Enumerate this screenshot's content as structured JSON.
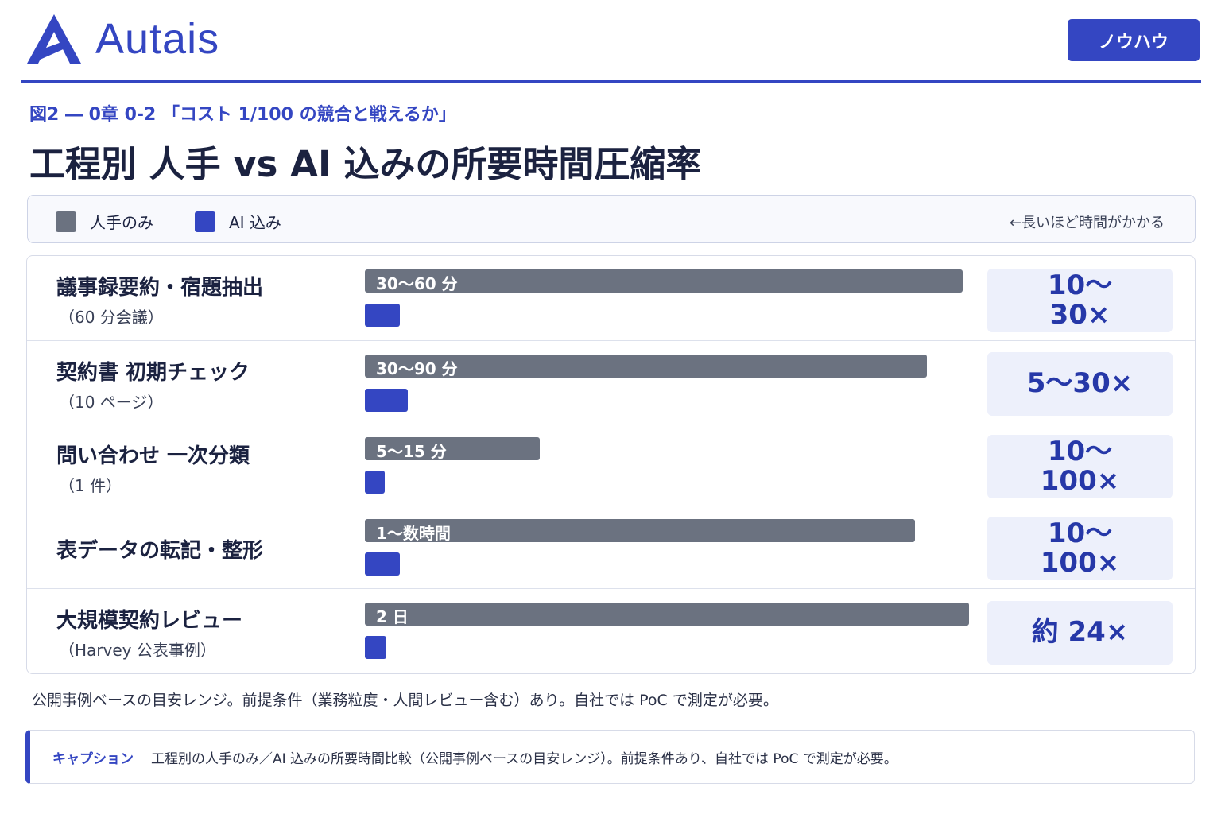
{
  "brand": {
    "name": "Autais",
    "logo_icon": "triangle-a-logo",
    "accent": "#3446c2"
  },
  "header": {
    "badge": "ノウハウ"
  },
  "figure_label": "図2 ― 0章 0-2 「コスト 1/100 の競合と戦えるか」",
  "title": "工程別 人手 vs AI 込みの所要時間圧縮率",
  "legend": {
    "human_label": "人手のみ",
    "ai_label": "AI 込み",
    "note": "←長いほど時間がかかる",
    "human_color": "#6b7280",
    "ai_color": "#3446c2"
  },
  "chart_data": {
    "type": "bar",
    "orientation": "horizontal",
    "series": [
      {
        "name": "人手のみ",
        "color": "#6b7280",
        "values": [
          0.99,
          0.93,
          0.29,
          0.91,
          1.0
        ]
      },
      {
        "name": "AI 込み",
        "color": "#3446c2",
        "values": [
          0.058,
          0.071,
          0.033,
          0.058,
          0.035
        ]
      }
    ],
    "rows": [
      {
        "name": "議事録要約・宿題抽出",
        "sub": "（60 分会議）",
        "human_label": "30〜60 分",
        "ratio": "10〜30×"
      },
      {
        "name": "契約書 初期チェック",
        "sub": "（10 ページ）",
        "human_label": "30〜90 分",
        "ratio": "5〜30×"
      },
      {
        "name": "問い合わせ 一次分類",
        "sub": "（1 件）",
        "human_label": "5〜15 分",
        "ratio": "10〜100×"
      },
      {
        "name": "表データの転記・整形",
        "sub": "",
        "human_label": "1〜数時間",
        "ratio": "10〜100×"
      },
      {
        "name": "大規模契約レビュー",
        "sub": "（Harvey 公表事例）",
        "human_label": "2 日",
        "ratio": "約 24×"
      }
    ]
  },
  "footnote": "公開事例ベースの目安レンジ。前提条件（業務粒度・人間レビュー含む）あり。自社では PoC で測定が必要。",
  "caption": {
    "label": "キャプション",
    "text": "工程別の人手のみ／AI 込みの所要時間比較（公開事例ベースの目安レンジ）。前提条件あり、自社では PoC で測定が必要。"
  }
}
